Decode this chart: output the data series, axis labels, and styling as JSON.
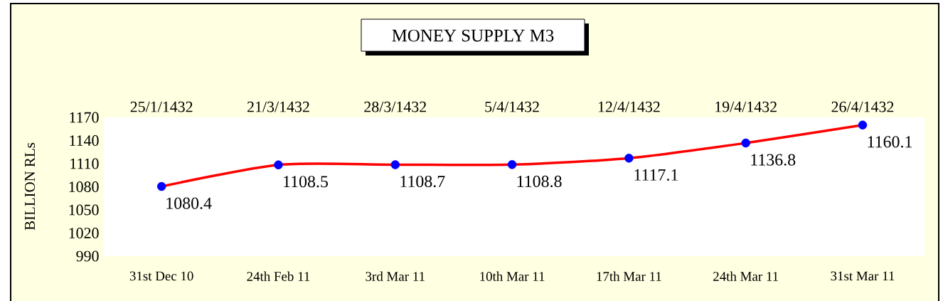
{
  "chart_data": {
    "type": "line",
    "title": "MONEY SUPPLY M3",
    "ylabel": "BILLION RLs",
    "categories": [
      "31st Dec 10",
      "24th Feb 11",
      "3rd Mar 11",
      "10th Mar 11",
      "17th Mar 11",
      "24th Mar 11",
      "31st Mar 11"
    ],
    "annotations": [
      "25/1/1432",
      "21/3/1432",
      "28/3/1432",
      "5/4/1432",
      "12/4/1432",
      "19/4/1432",
      "26/4/1432"
    ],
    "series": [
      {
        "color": "#ff0000",
        "colors": [
          "#0000ff",
          "#0000ff",
          "#0000ff",
          "#0000ff",
          "#0000ff",
          "#0000ff",
          "#0000ff"
        ],
        "values": [
          1080.4,
          1108.5,
          1108.7,
          1108.8,
          1117.1,
          1136.8,
          1160.1
        ],
        "value_labels": [
          "1080.4",
          "1108.5",
          "1108.7",
          "1108.8",
          "1117.1",
          "1136.8",
          "1160.1"
        ]
      }
    ],
    "ylim": [
      990,
      1170
    ],
    "yticks": [
      990,
      1020,
      1050,
      1080,
      1110,
      1140,
      1170
    ],
    "marker": "circle",
    "line_style": "solid",
    "grid": false
  }
}
